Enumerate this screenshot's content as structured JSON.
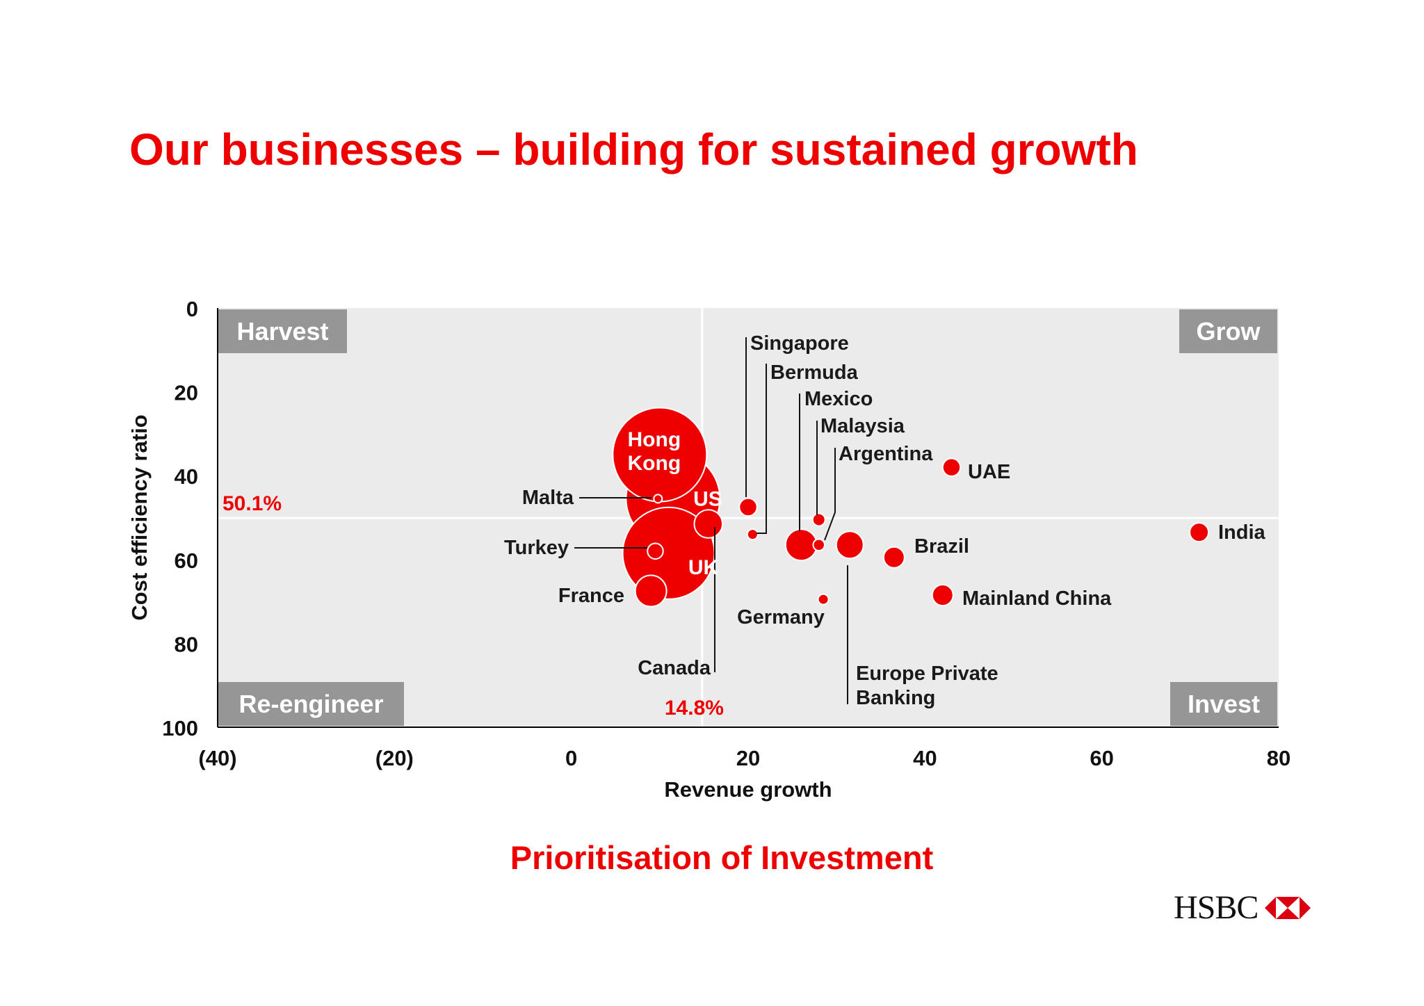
{
  "slide": {
    "title": "Our businesses – building for sustained growth",
    "subtitle": "Prioritisation of Investment",
    "logo_text": "HSBC"
  },
  "colors": {
    "accent": "#ee0000",
    "plot_bg": "#ebebeb",
    "label_bg": "#969696"
  },
  "chart_data": {
    "type": "scatter",
    "subtype": "bubble",
    "xlabel": "Revenue growth",
    "ylabel": "Cost efficiency ratio",
    "xlim": [
      -40,
      80
    ],
    "ylim": [
      0,
      100
    ],
    "y_inverted": true,
    "x_ticks": [
      "(40)",
      "(20)",
      "0",
      "20",
      "40",
      "60",
      "80"
    ],
    "y_ticks": [
      "0",
      "20",
      "40",
      "60",
      "80",
      "100"
    ],
    "reference_lines": [
      {
        "axis": "x",
        "value": 14.8,
        "label": "14.8%"
      },
      {
        "axis": "y",
        "value": 50.1,
        "label": "50.1%"
      }
    ],
    "quadrants": [
      {
        "label": "Harvest",
        "position": "top-left"
      },
      {
        "label": "Grow",
        "position": "top-right"
      },
      {
        "label": "Re-engineer",
        "position": "bottom-left"
      },
      {
        "label": "Invest",
        "position": "bottom-right"
      }
    ],
    "points": [
      {
        "name": "US",
        "x": 11.5,
        "y": 45.5,
        "size": 9.0
      },
      {
        "name": "Hong Kong",
        "x": 10,
        "y": 35,
        "size": 9.0
      },
      {
        "name": "UK",
        "x": 11,
        "y": 58.5,
        "size": 8.8
      },
      {
        "name": "Malta",
        "x": 9.8,
        "y": 45.5,
        "size": 0.8
      },
      {
        "name": "Turkey",
        "x": 9.5,
        "y": 58,
        "size": 1.5
      },
      {
        "name": "France",
        "x": 9,
        "y": 67.5,
        "size": 3.0
      },
      {
        "name": "Canada",
        "x": 15.5,
        "y": 51.5,
        "size": 2.7
      },
      {
        "name": "Singapore",
        "x": 20,
        "y": 47.5,
        "size": 1.7
      },
      {
        "name": "Bermuda",
        "x": 20.5,
        "y": 54,
        "size": 1.0
      },
      {
        "name": "Mexico",
        "x": 26,
        "y": 56.5,
        "size": 3.0
      },
      {
        "name": "Malaysia",
        "x": 28,
        "y": 50.5,
        "size": 1.2
      },
      {
        "name": "Argentina",
        "x": 28,
        "y": 56.5,
        "size": 1.1
      },
      {
        "name": "Germany",
        "x": 28.5,
        "y": 69.5,
        "size": 1.0
      },
      {
        "name": "Europe Private Banking",
        "x": 31.5,
        "y": 56.5,
        "size": 2.6
      },
      {
        "name": "Brazil",
        "x": 36.5,
        "y": 59.5,
        "size": 2.0
      },
      {
        "name": "UAE",
        "x": 43,
        "y": 38,
        "size": 1.7
      },
      {
        "name": "Mainland China",
        "x": 42,
        "y": 68.5,
        "size": 2.0
      },
      {
        "name": "India",
        "x": 71,
        "y": 53.5,
        "size": 1.8
      }
    ]
  }
}
